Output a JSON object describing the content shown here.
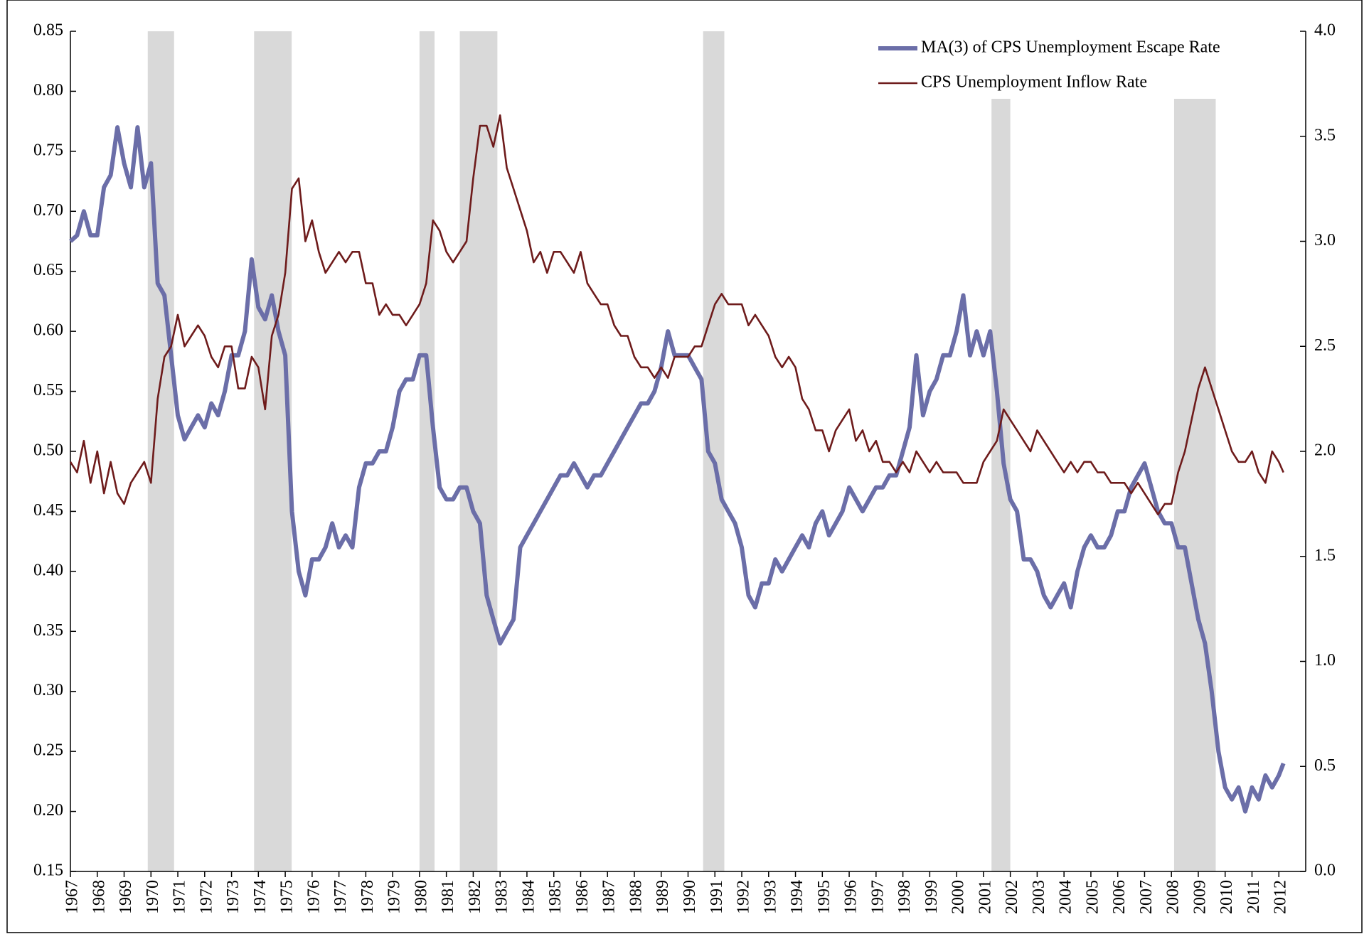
{
  "chart_data": {
    "type": "line",
    "x": [
      1967,
      1967.25,
      1967.5,
      1967.75,
      1968,
      1968.25,
      1968.5,
      1968.75,
      1969,
      1969.25,
      1969.5,
      1969.75,
      1970,
      1970.25,
      1970.5,
      1970.75,
      1971,
      1971.25,
      1971.5,
      1971.75,
      1972,
      1972.25,
      1972.5,
      1972.75,
      1973,
      1973.25,
      1973.5,
      1973.75,
      1974,
      1974.25,
      1974.5,
      1974.75,
      1975,
      1975.25,
      1975.5,
      1975.75,
      1976,
      1976.25,
      1976.5,
      1976.75,
      1977,
      1977.25,
      1977.5,
      1977.75,
      1978,
      1978.25,
      1978.5,
      1978.75,
      1979,
      1979.25,
      1979.5,
      1979.75,
      1980,
      1980.25,
      1980.5,
      1980.75,
      1981,
      1981.25,
      1981.5,
      1981.75,
      1982,
      1982.25,
      1982.5,
      1982.75,
      1983,
      1983.25,
      1983.5,
      1983.75,
      1984,
      1984.25,
      1984.5,
      1984.75,
      1985,
      1985.25,
      1985.5,
      1985.75,
      1986,
      1986.25,
      1986.5,
      1986.75,
      1987,
      1987.25,
      1987.5,
      1987.75,
      1988,
      1988.25,
      1988.5,
      1988.75,
      1989,
      1989.25,
      1989.5,
      1989.75,
      1990,
      1990.25,
      1990.5,
      1990.75,
      1991,
      1991.25,
      1991.5,
      1991.75,
      1992,
      1992.25,
      1992.5,
      1992.75,
      1993,
      1993.25,
      1993.5,
      1993.75,
      1994,
      1994.25,
      1994.5,
      1994.75,
      1995,
      1995.25,
      1995.5,
      1995.75,
      1996,
      1996.25,
      1996.5,
      1996.75,
      1997,
      1997.25,
      1997.5,
      1997.75,
      1998,
      1998.25,
      1998.5,
      1998.75,
      1999,
      1999.25,
      1999.5,
      1999.75,
      2000,
      2000.25,
      2000.5,
      2000.75,
      2001,
      2001.25,
      2001.5,
      2001.75,
      2002,
      2002.25,
      2002.5,
      2002.75,
      2003,
      2003.25,
      2003.5,
      2003.75,
      2004,
      2004.25,
      2004.5,
      2004.75,
      2005,
      2005.25,
      2005.5,
      2005.75,
      2006,
      2006.25,
      2006.5,
      2006.75,
      2007,
      2007.25,
      2007.5,
      2007.75,
      2008,
      2008.25,
      2008.5,
      2008.75,
      2009,
      2009.25,
      2009.5,
      2009.75,
      2010,
      2010.25,
      2010.5,
      2010.75,
      2011,
      2011.25,
      2011.5,
      2011.75,
      2012,
      2012.17
    ],
    "series": [
      {
        "name": "MA(3) of CPS Unemployment Escape Rate",
        "color": "#6b6ea8",
        "axis": "y",
        "values": [
          0.675,
          0.68,
          0.7,
          0.68,
          0.68,
          0.72,
          0.73,
          0.77,
          0.74,
          0.72,
          0.77,
          0.72,
          0.74,
          0.64,
          0.63,
          0.58,
          0.53,
          0.51,
          0.52,
          0.53,
          0.52,
          0.54,
          0.53,
          0.55,
          0.58,
          0.58,
          0.6,
          0.66,
          0.62,
          0.61,
          0.63,
          0.6,
          0.58,
          0.45,
          0.4,
          0.38,
          0.41,
          0.41,
          0.42,
          0.44,
          0.42,
          0.43,
          0.42,
          0.47,
          0.49,
          0.49,
          0.5,
          0.5,
          0.52,
          0.55,
          0.56,
          0.56,
          0.58,
          0.58,
          0.52,
          0.47,
          0.46,
          0.46,
          0.47,
          0.47,
          0.45,
          0.44,
          0.38,
          0.36,
          0.34,
          0.35,
          0.36,
          0.42,
          0.43,
          0.44,
          0.45,
          0.46,
          0.47,
          0.48,
          0.48,
          0.49,
          0.48,
          0.47,
          0.48,
          0.48,
          0.49,
          0.5,
          0.51,
          0.52,
          0.53,
          0.54,
          0.54,
          0.55,
          0.57,
          0.6,
          0.58,
          0.58,
          0.58,
          0.57,
          0.56,
          0.5,
          0.49,
          0.46,
          0.45,
          0.44,
          0.42,
          0.38,
          0.37,
          0.39,
          0.39,
          0.41,
          0.4,
          0.41,
          0.42,
          0.43,
          0.42,
          0.44,
          0.45,
          0.43,
          0.44,
          0.45,
          0.47,
          0.46,
          0.45,
          0.46,
          0.47,
          0.47,
          0.48,
          0.48,
          0.5,
          0.52,
          0.58,
          0.53,
          0.55,
          0.56,
          0.58,
          0.58,
          0.6,
          0.63,
          0.58,
          0.6,
          0.58,
          0.6,
          0.55,
          0.49,
          0.46,
          0.45,
          0.41,
          0.41,
          0.4,
          0.38,
          0.37,
          0.38,
          0.39,
          0.37,
          0.4,
          0.42,
          0.43,
          0.42,
          0.42,
          0.43,
          0.45,
          0.45,
          0.47,
          0.48,
          0.49,
          0.47,
          0.45,
          0.44,
          0.44,
          0.42,
          0.42,
          0.39,
          0.36,
          0.34,
          0.3,
          0.25,
          0.22,
          0.21,
          0.22,
          0.2,
          0.22,
          0.21,
          0.23,
          0.22,
          0.23,
          0.24
        ]
      },
      {
        "name": "CPS Unemployment Inflow Rate",
        "color": "#6e1b1b",
        "axis": "y2",
        "values": [
          1.95,
          1.9,
          2.05,
          1.85,
          2.0,
          1.8,
          1.95,
          1.8,
          1.75,
          1.85,
          1.9,
          1.95,
          1.85,
          2.25,
          2.45,
          2.5,
          2.65,
          2.5,
          2.55,
          2.6,
          2.55,
          2.45,
          2.4,
          2.5,
          2.5,
          2.3,
          2.3,
          2.45,
          2.4,
          2.2,
          2.55,
          2.65,
          2.85,
          3.25,
          3.3,
          3.0,
          3.1,
          2.95,
          2.85,
          2.9,
          2.95,
          2.9,
          2.95,
          2.95,
          2.8,
          2.8,
          2.65,
          2.7,
          2.65,
          2.65,
          2.6,
          2.65,
          2.7,
          2.8,
          3.1,
          3.05,
          2.95,
          2.9,
          2.95,
          3.0,
          3.3,
          3.55,
          3.55,
          3.45,
          3.6,
          3.35,
          3.25,
          3.15,
          3.05,
          2.9,
          2.95,
          2.85,
          2.95,
          2.95,
          2.9,
          2.85,
          2.95,
          2.8,
          2.75,
          2.7,
          2.7,
          2.6,
          2.55,
          2.55,
          2.45,
          2.4,
          2.4,
          2.35,
          2.4,
          2.35,
          2.45,
          2.45,
          2.45,
          2.5,
          2.5,
          2.6,
          2.7,
          2.75,
          2.7,
          2.7,
          2.7,
          2.6,
          2.65,
          2.6,
          2.55,
          2.45,
          2.4,
          2.45,
          2.4,
          2.25,
          2.2,
          2.1,
          2.1,
          2.0,
          2.1,
          2.15,
          2.2,
          2.05,
          2.1,
          2.0,
          2.05,
          1.95,
          1.95,
          1.9,
          1.95,
          1.9,
          2.0,
          1.95,
          1.9,
          1.95,
          1.9,
          1.9,
          1.9,
          1.85,
          1.85,
          1.85,
          1.95,
          2.0,
          2.05,
          2.2,
          2.15,
          2.1,
          2.05,
          2.0,
          2.1,
          2.05,
          2.0,
          1.95,
          1.9,
          1.95,
          1.9,
          1.95,
          1.95,
          1.9,
          1.9,
          1.85,
          1.85,
          1.85,
          1.8,
          1.85,
          1.8,
          1.75,
          1.7,
          1.75,
          1.75,
          1.9,
          2.0,
          2.15,
          2.3,
          2.4,
          2.3,
          2.2,
          2.1,
          2.0,
          1.95,
          1.95,
          2.0,
          1.9,
          1.85,
          2.0,
          1.95,
          1.9
        ]
      }
    ],
    "recessions": [
      [
        1969.88,
        1970.86
      ],
      [
        1973.84,
        1975.24
      ],
      [
        1980.0,
        1980.56
      ],
      [
        1981.5,
        1982.9
      ],
      [
        1990.56,
        1991.35
      ],
      [
        2001.3,
        2002.0
      ],
      [
        2008.1,
        2009.65
      ]
    ],
    "xlim": [
      1967,
      2013
    ],
    "xticks": [
      1967,
      1968,
      1969,
      1970,
      1971,
      1972,
      1973,
      1974,
      1975,
      1976,
      1977,
      1978,
      1979,
      1980,
      1981,
      1982,
      1983,
      1984,
      1985,
      1986,
      1987,
      1988,
      1989,
      1990,
      1991,
      1992,
      1993,
      1994,
      1995,
      1996,
      1997,
      1998,
      1999,
      2000,
      2001,
      2002,
      2003,
      2004,
      2005,
      2006,
      2007,
      2008,
      2009,
      2010,
      2011,
      2012
    ],
    "ylim": [
      0.15,
      0.85
    ],
    "yticks": [
      0.15,
      {
        "value": 0.2,
        "label": "0.20"
      },
      0.25,
      {
        "value": 0.3,
        "label": "0.30"
      },
      0.35,
      {
        "value": 0.4,
        "label": "0.40"
      },
      0.45,
      {
        "value": 0.5,
        "label": "0.50"
      },
      0.55,
      {
        "value": 0.6,
        "label": "0.60"
      },
      0.65,
      {
        "value": 0.7,
        "label": "0.70"
      },
      0.75,
      {
        "value": 0.8,
        "label": "0.80"
      },
      0.85
    ],
    "y2lim": [
      0,
      4
    ],
    "y2ticks": [
      {
        "value": 0,
        "label": "0.0"
      },
      0.5,
      {
        "value": 1,
        "label": "1.0"
      },
      1.5,
      {
        "value": 2,
        "label": "2.0"
      },
      2.5,
      {
        "value": 3,
        "label": "3.0"
      },
      3.5,
      {
        "value": 4,
        "label": "4.0"
      }
    ],
    "legend": "upper right",
    "grid": false
  }
}
